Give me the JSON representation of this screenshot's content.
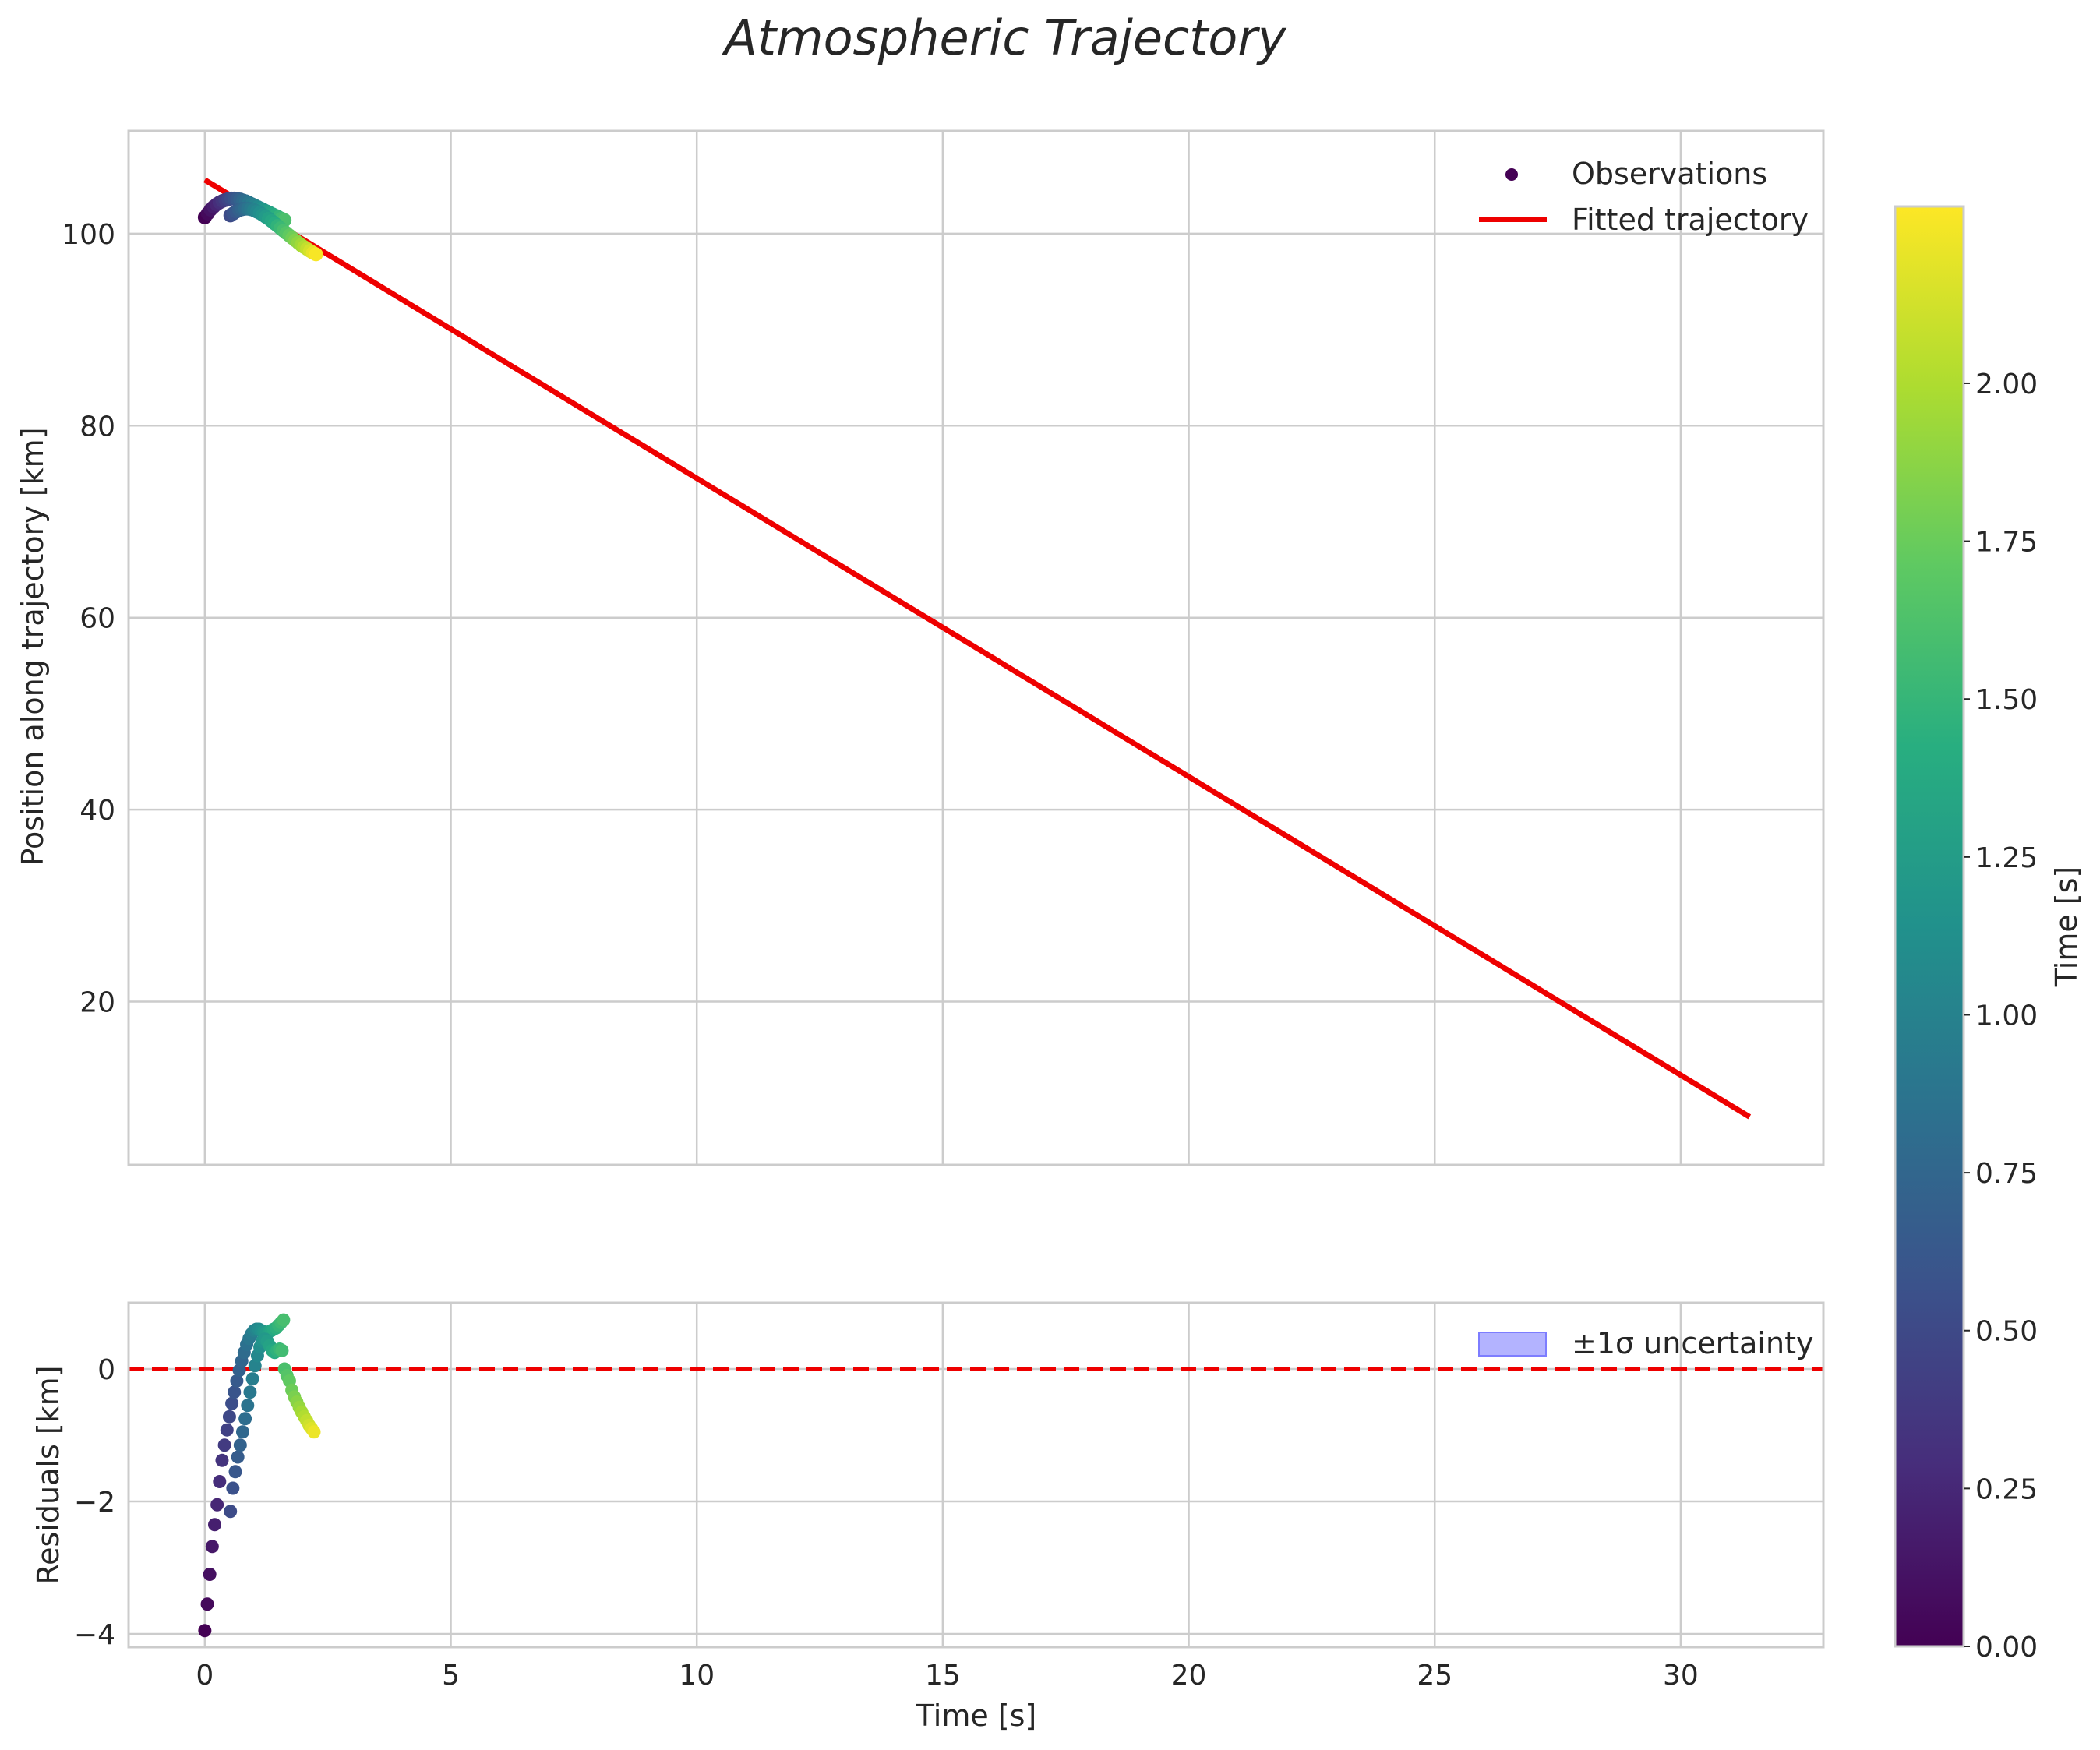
{
  "chart_data": {
    "type": "scatter",
    "title": "Atmospheric Trajectory",
    "xlabel": "Time [s]",
    "xlim": [
      -1.55,
      32.9
    ],
    "x_ticks": [
      0,
      5,
      10,
      15,
      20,
      25,
      30
    ],
    "x_tick_labels": [
      "0",
      "5",
      "10",
      "15",
      "20",
      "25",
      "30"
    ],
    "panels": {
      "main": {
        "ylabel": "Position along trajectory [km]",
        "ylim": [
          3,
          110.7
        ],
        "y_ticks": [
          20,
          40,
          60,
          80,
          100
        ],
        "y_tick_labels": [
          "20",
          "40",
          "60",
          "80",
          "100"
        ],
        "legend": {
          "position": "top-right",
          "entries": [
            "Observations",
            "Fitted trajectory"
          ]
        },
        "fitted_line": {
          "name": "Fitted trajectory",
          "color": "#ee0000",
          "x": [
            0,
            31.4
          ],
          "y": [
            105.6,
            8.0
          ]
        },
        "observations_track_a": {
          "t": [
            0.0,
            0.06,
            0.12,
            0.18,
            0.24,
            0.3,
            0.36,
            0.42,
            0.48,
            0.54,
            0.6,
            0.66,
            0.72,
            0.78,
            0.84,
            0.9,
            0.96,
            1.02,
            1.08,
            1.14,
            1.2,
            1.26,
            1.32,
            1.38,
            1.44,
            1.5,
            1.56,
            1.62
          ],
          "y": [
            101.7,
            102.1,
            102.5,
            102.8,
            103.05,
            103.25,
            103.4,
            103.5,
            103.6,
            103.65,
            103.65,
            103.6,
            103.55,
            103.45,
            103.35,
            103.2,
            103.05,
            102.9,
            102.75,
            102.6,
            102.45,
            102.3,
            102.15,
            102.0,
            101.85,
            101.7,
            101.55,
            101.4
          ]
        },
        "observations_track_b": {
          "t": [
            0.52,
            0.58,
            0.64,
            0.7,
            0.76,
            0.82,
            0.88,
            0.94,
            1.0,
            1.06,
            1.12,
            1.18,
            1.24,
            1.3,
            1.36,
            1.42,
            1.48,
            1.54,
            1.6,
            1.66,
            1.72,
            1.78,
            1.84,
            1.9,
            1.96,
            2.02,
            2.08,
            2.14,
            2.2,
            2.26
          ],
          "y": [
            101.9,
            102.1,
            102.3,
            102.45,
            102.55,
            102.6,
            102.6,
            102.55,
            102.45,
            102.3,
            102.15,
            101.95,
            101.75,
            101.55,
            101.3,
            101.05,
            100.8,
            100.55,
            100.3,
            100.05,
            99.8,
            99.55,
            99.3,
            99.05,
            98.8,
            98.6,
            98.4,
            98.2,
            98.0,
            97.85
          ]
        }
      },
      "residuals": {
        "ylabel": "Residuals [km]",
        "ylim": [
          -4.2,
          1.0
        ],
        "y_ticks": [
          -4,
          -2,
          0
        ],
        "y_tick_labels": [
          "−4",
          "−2",
          "0"
        ],
        "zero_line": {
          "y": 0,
          "color": "#ee0000",
          "style": "dashed"
        },
        "legend": {
          "position": "top-right",
          "entries": [
            "±1σ uncertainty"
          ]
        },
        "band_color": "#b3b3ff",
        "track_a": {
          "t": [
            0.0,
            0.05,
            0.1,
            0.15,
            0.2,
            0.25,
            0.3,
            0.35,
            0.4,
            0.45,
            0.5,
            0.55,
            0.6,
            0.65,
            0.7,
            0.75,
            0.8,
            0.85,
            0.9,
            0.95,
            1.0,
            1.05,
            1.1,
            1.15,
            1.2,
            1.25,
            1.3,
            1.35,
            1.4,
            1.45,
            1.5,
            1.55,
            1.6
          ],
          "y": [
            -3.95,
            -3.55,
            -3.1,
            -2.68,
            -2.35,
            -2.05,
            -1.7,
            -1.38,
            -1.15,
            -0.92,
            -0.72,
            -0.52,
            -0.35,
            -0.18,
            -0.02,
            0.12,
            0.25,
            0.37,
            0.46,
            0.53,
            0.58,
            0.6,
            0.6,
            0.58,
            0.56,
            0.55,
            0.56,
            0.58,
            0.6,
            0.62,
            0.66,
            0.7,
            0.74
          ]
        },
        "track_b": {
          "t": [
            0.52,
            0.57,
            0.62,
            0.67,
            0.72,
            0.77,
            0.82,
            0.87,
            0.92,
            0.97,
            1.02,
            1.07,
            1.12,
            1.17,
            1.22,
            1.27,
            1.32,
            1.37,
            1.42,
            1.47,
            1.52,
            1.57,
            1.62,
            1.67,
            1.72,
            1.77,
            1.82,
            1.87,
            1.92,
            1.97,
            2.02,
            2.07,
            2.12,
            2.17,
            2.22
          ],
          "y": [
            -2.15,
            -1.8,
            -1.55,
            -1.33,
            -1.15,
            -0.95,
            -0.75,
            -0.55,
            -0.35,
            -0.15,
            0.05,
            0.2,
            0.33,
            0.42,
            0.45,
            0.42,
            0.35,
            0.28,
            0.25,
            0.28,
            0.3,
            0.28,
            0.0,
            -0.1,
            -0.18,
            -0.32,
            -0.42,
            -0.5,
            -0.58,
            -0.65,
            -0.72,
            -0.78,
            -0.85,
            -0.9,
            -0.95
          ]
        }
      }
    },
    "colorbar": {
      "label": "Time [s]",
      "colormap": "viridis",
      "range": [
        0.0,
        2.28
      ],
      "ticks": [
        0.0,
        0.25,
        0.5,
        0.75,
        1.0,
        1.25,
        1.5,
        1.75,
        2.0
      ],
      "tick_labels": [
        "0.00",
        "0.25",
        "0.50",
        "0.75",
        "1.00",
        "1.25",
        "1.50",
        "1.75",
        "2.00"
      ]
    }
  }
}
